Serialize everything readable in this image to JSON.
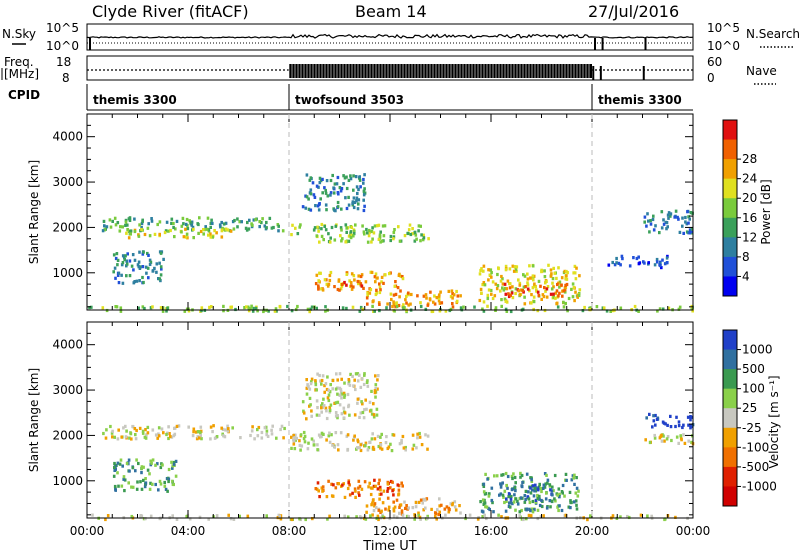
{
  "header": {
    "station": "Clyde River (fitACF)",
    "beam": "Beam 14",
    "date": "27/Jul/2016"
  },
  "top_panels": {
    "nsky": {
      "label": "N.Sky",
      "scale_top": "10^5",
      "scale_bottom": "10^0",
      "right_label": "N.Search",
      "right_scale_top": "10^5",
      "right_scale_bottom": "10^0"
    },
    "freq": {
      "label_line1": "Freq.",
      "label_line2": "[MHz]",
      "left_top": "18",
      "left_bottom": "8",
      "right_top": "60",
      "right_bottom": "0",
      "right_label": "Nave"
    },
    "cpid": {
      "label": "CPID",
      "segments": [
        {
          "name": "themis 3300",
          "start_hour": 0,
          "end_hour": 8
        },
        {
          "name": "twofsound 3503",
          "start_hour": 8,
          "end_hour": 20
        },
        {
          "name": "themis 3300",
          "start_hour": 20,
          "end_hour": 24
        }
      ]
    }
  },
  "chart_data": [
    {
      "type": "heatmap",
      "title": "",
      "ylabel": "Slant Range [km]",
      "yticks": [
        "1000",
        "2000",
        "3000",
        "4000"
      ],
      "ylim": [
        180,
        4500
      ],
      "xlim": [
        0,
        24
      ],
      "colorbar": {
        "label": "Power [dB]",
        "ticks": [
          "4",
          "8",
          "12",
          "16",
          "20",
          "24",
          "28"
        ],
        "colors": [
          "#0000f0",
          "#2050d8",
          "#2e7fa0",
          "#3aa05a",
          "#7acb3c",
          "#e0e020",
          "#f0a000",
          "#f06000",
          "#e01010"
        ]
      },
      "echo_regions": [
        {
          "t0": 0.5,
          "t1": 7.8,
          "r0": 1950,
          "r1": 2250,
          "level": 3
        },
        {
          "t0": 1.5,
          "t1": 6.0,
          "r0": 1800,
          "r1": 2000,
          "level": 5
        },
        {
          "t0": 8.0,
          "t1": 13.5,
          "r0": 1700,
          "r1": 2100,
          "level": 4
        },
        {
          "t0": 9.0,
          "t1": 12.5,
          "r0": 650,
          "r1": 1050,
          "level": 6
        },
        {
          "t0": 9.5,
          "t1": 11.0,
          "r0": 700,
          "r1": 850,
          "level": 7
        },
        {
          "t0": 11.0,
          "t1": 14.8,
          "r0": 280,
          "r1": 650,
          "level": 6
        },
        {
          "t0": 15.5,
          "t1": 19.5,
          "r0": 350,
          "r1": 1200,
          "level": 5
        },
        {
          "t0": 16.5,
          "t1": 19.0,
          "r0": 500,
          "r1": 800,
          "level": 7
        },
        {
          "t0": 8.5,
          "t1": 11.0,
          "r0": 2400,
          "r1": 3200,
          "level": 2
        },
        {
          "t0": 22.0,
          "t1": 24.0,
          "r0": 1900,
          "r1": 2400,
          "level": 2
        },
        {
          "t0": 20.5,
          "t1": 23.0,
          "r0": 1150,
          "r1": 1400,
          "level": 1
        },
        {
          "t0": 1.0,
          "t1": 3.0,
          "r0": 800,
          "r1": 1500,
          "level": 2
        },
        {
          "t0": 0.0,
          "t1": 24.0,
          "r0": 180,
          "r1": 300,
          "level": 4
        }
      ]
    },
    {
      "type": "heatmap",
      "title": "",
      "ylabel": "Slant Range [km]",
      "xlabel": "Time UT",
      "xticks": [
        "00:00",
        "04:00",
        "08:00",
        "12:00",
        "16:00",
        "20:00",
        "00:00"
      ],
      "yticks": [
        "1000",
        "2000",
        "3000",
        "4000"
      ],
      "ylim": [
        180,
        4500
      ],
      "xlim": [
        0,
        24
      ],
      "colorbar": {
        "label": "Velocity [m s⁻¹]",
        "ticks": [
          "1000",
          "500",
          "100",
          "25",
          "-25",
          "-100",
          "-500",
          "-1000"
        ],
        "colors": [
          "#2040c8",
          "#3070a0",
          "#3a9a50",
          "#8ad04a",
          "#c8c8c0",
          "#f0a000",
          "#f07000",
          "#e02000",
          "#d00000"
        ]
      },
      "echo_regions": [
        {
          "t0": 0.5,
          "t1": 7.8,
          "r0": 1950,
          "r1": 2250,
          "level": 4
        },
        {
          "t0": 8.0,
          "t1": 13.5,
          "r0": 1700,
          "r1": 2100,
          "level": 4
        },
        {
          "t0": 9.0,
          "t1": 12.5,
          "r0": 650,
          "r1": 1050,
          "level": 6
        },
        {
          "t0": 11.0,
          "t1": 14.8,
          "r0": 280,
          "r1": 650,
          "level": 5
        },
        {
          "t0": 15.5,
          "t1": 19.5,
          "r0": 350,
          "r1": 1200,
          "level": 2
        },
        {
          "t0": 16.5,
          "t1": 18.5,
          "r0": 600,
          "r1": 950,
          "level": 1
        },
        {
          "t0": 8.5,
          "t1": 11.5,
          "r0": 2400,
          "r1": 3400,
          "level": 4
        },
        {
          "t0": 22.0,
          "t1": 24.0,
          "r0": 2200,
          "r1": 2500,
          "level": 0
        },
        {
          "t0": 22.0,
          "t1": 24.0,
          "r0": 1850,
          "r1": 2100,
          "level": 4
        },
        {
          "t0": 1.0,
          "t1": 3.5,
          "r0": 800,
          "r1": 1500,
          "level": 2
        },
        {
          "t0": 0.0,
          "t1": 24.0,
          "r0": 180,
          "r1": 280,
          "level": 4
        }
      ]
    }
  ]
}
